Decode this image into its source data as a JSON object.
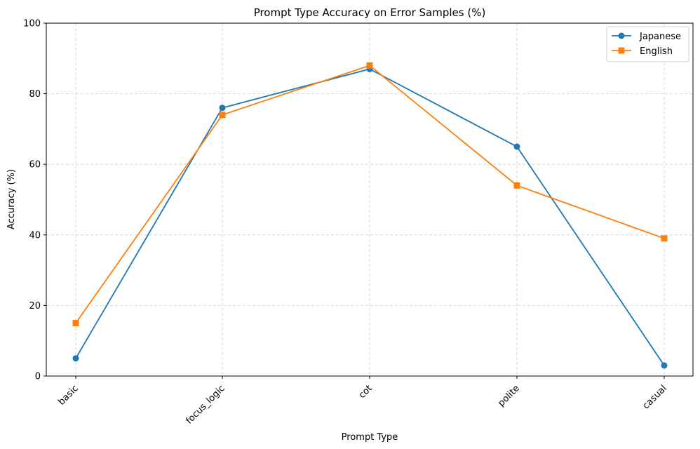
{
  "chart_data": {
    "type": "line",
    "title": "Prompt Type Accuracy on Error Samples (%)",
    "xlabel": "Prompt Type",
    "ylabel": "Accuracy (%)",
    "categories": [
      "basic",
      "focus_logic",
      "cot",
      "polite",
      "casual"
    ],
    "ylim": [
      0,
      100
    ],
    "yticks": [
      0,
      20,
      40,
      60,
      80,
      100
    ],
    "grid": true,
    "legend_position": "top-right",
    "series": [
      {
        "name": "Japanese",
        "values": [
          5,
          76,
          87,
          65,
          3
        ],
        "color": "#1f77b4",
        "marker": "circle"
      },
      {
        "name": "English",
        "values": [
          15,
          74,
          88,
          54,
          39
        ],
        "color": "#ff7f0e",
        "marker": "square"
      }
    ]
  }
}
